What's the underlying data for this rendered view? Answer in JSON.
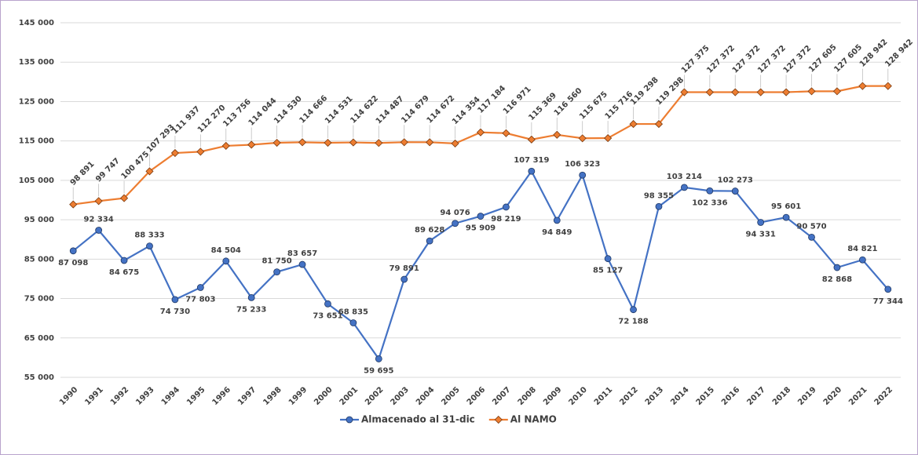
{
  "chart_data": {
    "type": "line",
    "categories": [
      "1990",
      "1991",
      "1992",
      "1993",
      "1994",
      "1995",
      "1996",
      "1997",
      "1998",
      "1999",
      "2000",
      "2001",
      "2002",
      "2003",
      "2004",
      "2005",
      "2006",
      "2007",
      "2008",
      "2009",
      "2010",
      "2011",
      "2012",
      "2013",
      "2014",
      "2015",
      "2016",
      "2017",
      "2018",
      "2019",
      "2020",
      "2021",
      "2022"
    ],
    "series": [
      {
        "name": "Almacenado al 31-dic",
        "color": "#4472c4",
        "marker": "circle",
        "values": [
          87098,
          92334,
          84675,
          88333,
          74730,
          77803,
          84504,
          75233,
          81750,
          83657,
          73651,
          68835,
          59695,
          79891,
          89628,
          94076,
          95909,
          98219,
          107319,
          94849,
          106323,
          85127,
          72188,
          98355,
          103214,
          102336,
          102273,
          94331,
          95601,
          90570,
          82868,
          84821,
          77344
        ],
        "value_labels": [
          "87 098",
          "92 334",
          "84 675",
          "88 333",
          "74 730",
          "77 803",
          "84 504",
          "75 233",
          "81 750",
          "83 657",
          "73 651",
          "68 835",
          "59 695",
          "79 891",
          "89 628",
          "94 076",
          "95 909",
          "98 219",
          "107 319",
          "94 849",
          "106 323",
          "85 127",
          "72 188",
          "98 355",
          "103 214",
          "102 336",
          "102 273",
          "94 331",
          "95 601",
          "90 570",
          "82 868",
          "84 821",
          "77 344"
        ]
      },
      {
        "name": "Al NAMO",
        "color": "#ed7d31",
        "marker": "diamond",
        "values": [
          98891,
          99747,
          100475,
          107293,
          111937,
          112270,
          113756,
          114044,
          114530,
          114666,
          114531,
          114622,
          114487,
          114679,
          114672,
          114354,
          117184,
          116971,
          115369,
          116560,
          115675,
          115716,
          119298,
          119298,
          127375,
          127372,
          127372,
          127372,
          127372,
          127605,
          127605,
          128942,
          128942
        ],
        "value_labels": [
          "98 891",
          "99 747",
          "100 475",
          "107 293",
          "111 937",
          "112 270",
          "113 756",
          "114 044",
          "114 530",
          "114 666",
          "114 531",
          "114 622",
          "114 487",
          "114 679",
          "114 672",
          "114 354",
          "117 184",
          "116 971",
          "115 369",
          "116 560",
          "115 675",
          "115 716",
          "119 298",
          "119 298",
          "127 375",
          "127 372",
          "127 372",
          "127 372",
          "127 372",
          "127 605",
          "127 605",
          "128 942",
          "128 942"
        ]
      }
    ],
    "ylim": [
      55000,
      145000
    ],
    "yticks": [
      {
        "value": 55000,
        "label": "55 000"
      },
      {
        "value": 65000,
        "label": "65 000"
      },
      {
        "value": 75000,
        "label": "75 000"
      },
      {
        "value": 85000,
        "label": "85 000"
      },
      {
        "value": 95000,
        "label": "95 000"
      },
      {
        "value": 105000,
        "label": "105 000"
      },
      {
        "value": 115000,
        "label": "115 000"
      },
      {
        "value": 125000,
        "label": "125 000"
      },
      {
        "value": 135000,
        "label": "135 000"
      },
      {
        "value": 145000,
        "label": "145 000"
      }
    ],
    "grid": true,
    "legend": "bottom"
  }
}
